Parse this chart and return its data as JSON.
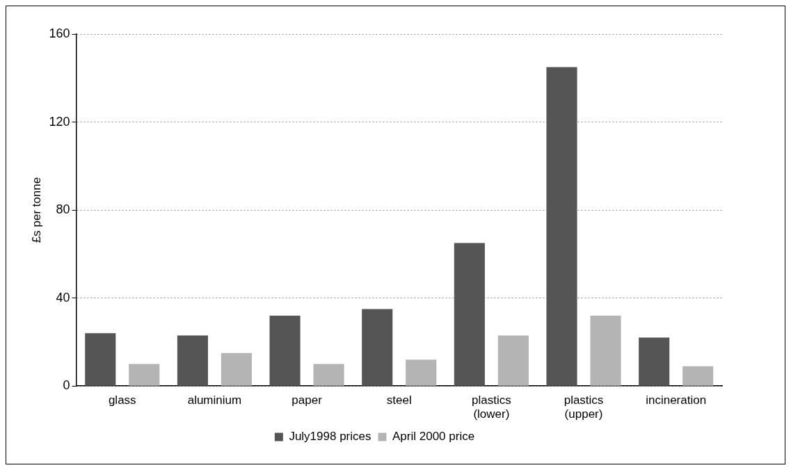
{
  "chart_data": {
    "type": "bar",
    "ylabel": "£s per tonne",
    "categories": [
      "glass",
      "aluminium",
      "paper",
      "steel",
      "plastics (lower)",
      "plastics (upper)",
      "incineration"
    ],
    "series": [
      {
        "name": "July1998 prices",
        "color": "#555555",
        "values": [
          24,
          23,
          32,
          35,
          65,
          145,
          22
        ]
      },
      {
        "name": "April 2000 price",
        "color": "#b4b4b4",
        "values": [
          10,
          15,
          10,
          12,
          23,
          32,
          9
        ]
      }
    ],
    "ylim": [
      0,
      160
    ],
    "yticks": [
      0,
      40,
      80,
      120,
      160
    ],
    "grid": "y",
    "legend": "bottom"
  }
}
